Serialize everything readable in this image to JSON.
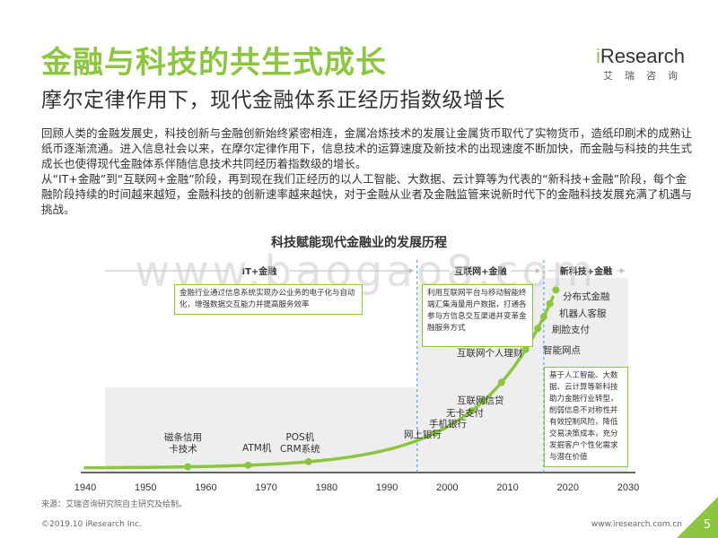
{
  "header": {
    "title": "金融与科技的共生式成长",
    "subtitle": "摩尔定律作用下，现代金融体系正经历指数级增长"
  },
  "logo": {
    "word_i": "i",
    "word_rest": "Research",
    "sub": "艾瑞咨询"
  },
  "body": {
    "para1": "回顾人类的金融发展史，科技创新与金融创新始终紧密相连，金属冶炼技术的发展让金属货币取代了实物货币，造纸印刷术的成熟让纸币逐渐流通。进入信息社会以来，在摩尔定律作用下，信息技术的运算速度及新技术的出现速度不断加快，而金融与科技的共生式成长也使得现代金融体系伴随信息技术共同经历着指数级的增长。",
    "para2": "从“IT+金融”到“互联网+金融”阶段，再到现在我们正经历的以人工智能、大数据、云计算等为代表的“新科技+金融”阶段，每个金融阶段持续的时间越来越短，金融科技的创新速率越来越快，对于金融从业者及金融监管来说新时代下的金融科技发展充满了机遇与挑战。"
  },
  "watermark": "www.baogao8.com",
  "chart_data": {
    "type": "line",
    "title": "科技赋能现代金融业的发展历程",
    "x_ticks": [
      "1940",
      "1950",
      "1960",
      "1970",
      "1980",
      "1990",
      "2000",
      "2010",
      "2020",
      "2030"
    ],
    "xlim": [
      1940,
      2030
    ],
    "stages": [
      {
        "name": "IT+金融",
        "from": 1940,
        "to": 1995,
        "desc": "金融行业通过信息系统实现办公业务的电子化与自动化，增强数据交互能力并提高服务效率"
      },
      {
        "name": "互联网+金融",
        "from": 1995,
        "to": 2016,
        "desc": "利用互联网平台与移动智能终端汇集海量用户数据，打通各参与方信息交互渠道并变革金融服务方式"
      },
      {
        "name": "新科技+金融",
        "from": 2016,
        "to": 2030,
        "desc": "基于人工智能、大数据、云计算等新科技助力金融行业转型，削弱信息不对称性并有效控制风险，降低交易决策成本，充分发掘客户个性化需求与潜在价值"
      }
    ],
    "events": [
      {
        "label": "磁条信用\n卡技术",
        "year": 1957
      },
      {
        "label": "ATM机",
        "year": 1967
      },
      {
        "label": "POS机\nCRM系统",
        "year": 1977
      },
      {
        "label": "网上银行",
        "year": 1998
      },
      {
        "label": "手机银行",
        "year": 2004
      },
      {
        "label": "无卡支付",
        "year": 2006
      },
      {
        "label": "互联网信贷",
        "year": 2009
      },
      {
        "label": "互联网个人理财",
        "year": 2013
      },
      {
        "label": "智能网点",
        "year": 2015
      },
      {
        "label": "刷脸支付",
        "year": 2016
      },
      {
        "label": "机器人客服",
        "year": 2017
      },
      {
        "label": "分布式金融",
        "year": 2018
      }
    ],
    "line_color": "#8cc63e"
  },
  "source": "来源：艾瑞咨询研究院自主研究及绘制。",
  "footer": {
    "copyright": "©2019.10 iResearch Inc.",
    "site": "www.iresearch.com.cn",
    "page": "5"
  }
}
